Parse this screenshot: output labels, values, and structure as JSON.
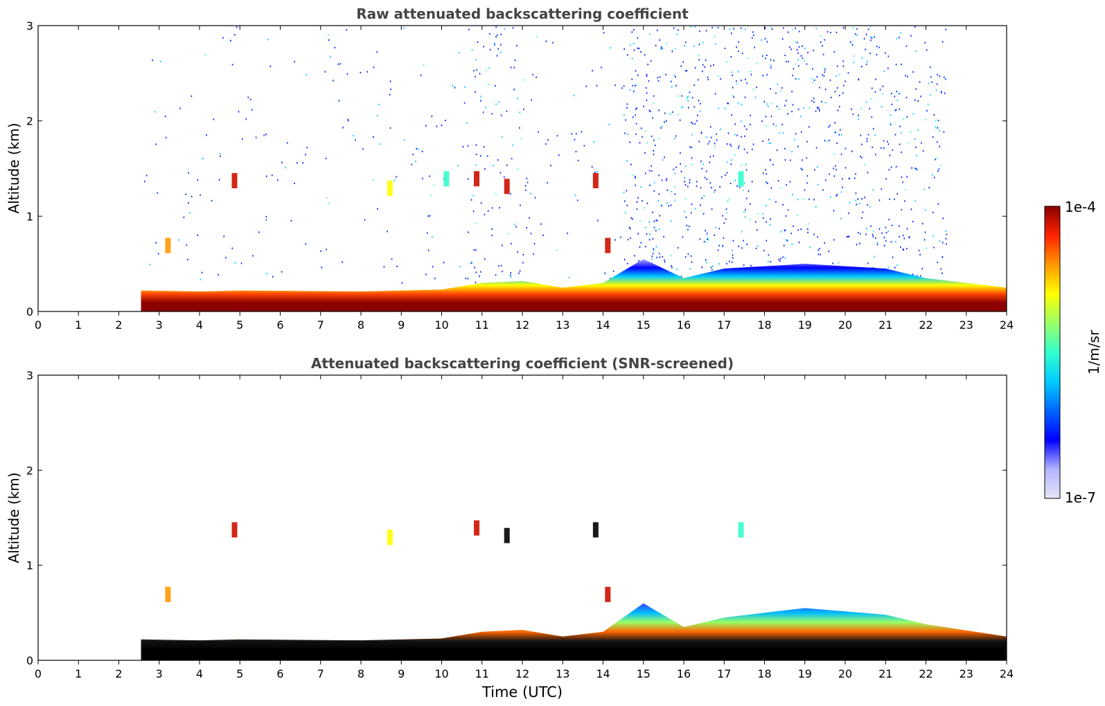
{
  "figure": {
    "colorbar": {
      "max_label": "1e-4",
      "min_label": "1e-7",
      "unit_label": "1/m/sr",
      "colormap": [
        "#e6e6f7",
        "#b3b3ff",
        "#0000ff",
        "#0066ff",
        "#00ccff",
        "#33ffcc",
        "#99ff66",
        "#ffff00",
        "#ff9900",
        "#ff2200",
        "#8b0000"
      ]
    },
    "shared_xlabel": "Time (UTC)"
  },
  "chart_data": [
    {
      "type": "heatmap",
      "title": "Raw attenuated backscattering coefficient",
      "xlabel": "",
      "ylabel": "Altitude (km)",
      "xlim": [
        0,
        24
      ],
      "ylim": [
        0,
        3
      ],
      "xticks": [
        0,
        1,
        2,
        3,
        4,
        5,
        6,
        7,
        8,
        9,
        10,
        11,
        12,
        13,
        14,
        15,
        16,
        17,
        18,
        19,
        20,
        21,
        22,
        23,
        24
      ],
      "yticks": [
        0,
        1,
        2,
        3
      ],
      "data_start_hour": 2.55,
      "boundary_layer_top_km": [
        [
          2.55,
          0.22
        ],
        [
          4,
          0.21
        ],
        [
          5,
          0.22
        ],
        [
          8,
          0.21
        ],
        [
          10,
          0.23
        ],
        [
          11,
          0.3
        ],
        [
          12,
          0.32
        ],
        [
          13,
          0.25
        ],
        [
          14,
          0.3
        ],
        [
          15,
          0.55
        ],
        [
          16,
          0.35
        ],
        [
          17,
          0.45
        ],
        [
          19,
          0.5
        ],
        [
          21,
          0.45
        ],
        [
          22,
          0.35
        ],
        [
          24,
          0.25
        ]
      ],
      "cloud_features": [
        {
          "t": 3.2,
          "alt": 0.7,
          "level": "orange"
        },
        {
          "t": 4.85,
          "alt": 1.38,
          "level": "red"
        },
        {
          "t": 8.7,
          "alt": 1.3,
          "level": "yellow"
        },
        {
          "t": 10.1,
          "alt": 1.4,
          "level": "green"
        },
        {
          "t": 10.85,
          "alt": 1.4,
          "level": "red"
        },
        {
          "t": 11.6,
          "alt": 1.32,
          "level": "red"
        },
        {
          "t": 13.8,
          "alt": 1.38,
          "level": "red"
        },
        {
          "t": 14.1,
          "alt": 0.7,
          "level": "red"
        },
        {
          "t": 17.4,
          "alt": 1.4,
          "level": "green"
        }
      ]
    },
    {
      "type": "heatmap",
      "title": "Attenuated backscattering coefficient (SNR-screened)",
      "xlabel": "Time (UTC)",
      "ylabel": "Altitude (km)",
      "xlim": [
        0,
        24
      ],
      "ylim": [
        0,
        3
      ],
      "xticks": [
        0,
        1,
        2,
        3,
        4,
        5,
        6,
        7,
        8,
        9,
        10,
        11,
        12,
        13,
        14,
        15,
        16,
        17,
        18,
        19,
        20,
        21,
        22,
        23,
        24
      ],
      "yticks": [
        0,
        1,
        2,
        3
      ],
      "data_start_hour": 2.55,
      "boundary_layer_top_km": [
        [
          2.55,
          0.22
        ],
        [
          4,
          0.21
        ],
        [
          5,
          0.22
        ],
        [
          8,
          0.21
        ],
        [
          10,
          0.23
        ],
        [
          11,
          0.3
        ],
        [
          12,
          0.32
        ],
        [
          13,
          0.25
        ],
        [
          14,
          0.3
        ],
        [
          15,
          0.6
        ],
        [
          16,
          0.35
        ],
        [
          17,
          0.45
        ],
        [
          19,
          0.55
        ],
        [
          21,
          0.48
        ],
        [
          22,
          0.38
        ],
        [
          24,
          0.25
        ]
      ],
      "cloud_features": [
        {
          "t": 3.2,
          "alt": 0.7,
          "level": "orange"
        },
        {
          "t": 4.85,
          "alt": 1.38,
          "level": "red"
        },
        {
          "t": 8.7,
          "alt": 1.3,
          "level": "yellow"
        },
        {
          "t": 10.85,
          "alt": 1.4,
          "level": "red"
        },
        {
          "t": 11.6,
          "alt": 1.32,
          "level": "black"
        },
        {
          "t": 13.8,
          "alt": 1.38,
          "level": "black"
        },
        {
          "t": 14.1,
          "alt": 0.7,
          "level": "red"
        },
        {
          "t": 17.4,
          "alt": 1.38,
          "level": "green"
        }
      ]
    }
  ]
}
